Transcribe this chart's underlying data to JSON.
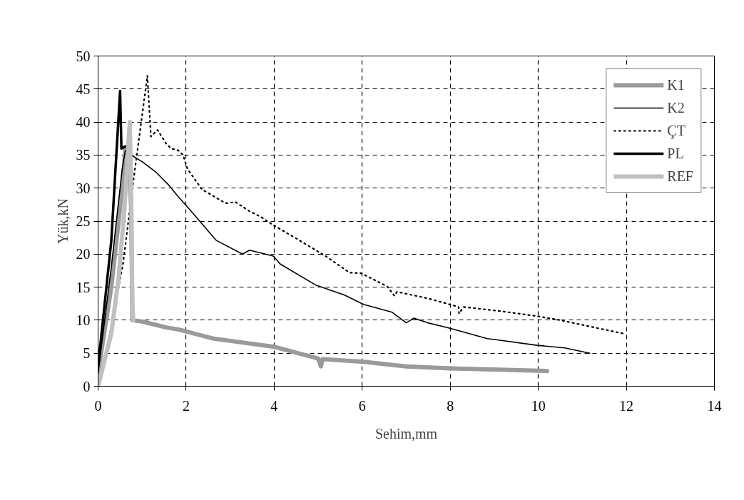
{
  "chart_data": {
    "type": "line",
    "xlabel": "Sehim,mm",
    "ylabel": "Yük,kN",
    "xlim": [
      0,
      14
    ],
    "ylim": [
      0,
      50
    ],
    "xticks": [
      0,
      2,
      4,
      6,
      8,
      10,
      12,
      14
    ],
    "yticks": [
      0,
      5,
      10,
      15,
      20,
      25,
      30,
      35,
      40,
      45,
      50
    ],
    "grid": true,
    "legend": "top right",
    "marker": "none",
    "series": [
      {
        "name": "K1",
        "color": "#9a9a9a",
        "line_style": "solid",
        "x": [
          0,
          0.3,
          0.55,
          0.62,
          0.7,
          0.75,
          0.78,
          1.0,
          1.55,
          1.82,
          2.63,
          3.3,
          3.98,
          4.6,
          5.0,
          5.06,
          5.1,
          6.03,
          7.0,
          8.0,
          9.11,
          10.2
        ],
        "values": [
          2,
          15,
          30,
          36,
          35,
          27,
          10,
          9.8,
          8.9,
          8.6,
          7.2,
          6.6,
          6.0,
          4.9,
          4.2,
          3.0,
          4.1,
          3.7,
          3.0,
          2.7,
          2.5,
          2.3
        ]
      },
      {
        "name": "K2",
        "color": "#000000",
        "line_style": "solid",
        "x": [
          0,
          0.3,
          0.55,
          0.62,
          0.8,
          1.0,
          1.3,
          1.6,
          1.82,
          2.05,
          2.36,
          2.68,
          3.28,
          3.44,
          3.98,
          4.14,
          4.95,
          5.6,
          6.03,
          6.68,
          7.0,
          7.17,
          7.49,
          7.98,
          8.84,
          9.1,
          9.97,
          10.6,
          11.17
        ],
        "values": [
          2,
          18,
          33,
          35.7,
          34.8,
          34,
          32.5,
          30.5,
          28.7,
          27,
          24.6,
          22.1,
          20,
          20.6,
          19.7,
          18.5,
          15.3,
          13.8,
          12.4,
          11.2,
          9.6,
          10.3,
          9.6,
          8.8,
          7.2,
          7.0,
          6.2,
          5.8,
          5.0
        ]
      },
      {
        "name": "ÇT",
        "color": "#000000",
        "line_style": "dotted",
        "x": [
          0,
          0.3,
          0.57,
          0.81,
          1.12,
          1.2,
          1.35,
          1.55,
          1.66,
          1.82,
          1.93,
          2.03,
          2.36,
          2.9,
          3.12,
          3.44,
          3.71,
          3.98,
          4.52,
          5.17,
          5.71,
          5.98,
          6.57,
          6.73,
          6.79,
          7.49,
          7.98,
          8.19,
          8.2,
          8.3,
          9.11,
          9.98,
          10.5,
          11.2,
          11.92
        ],
        "values": [
          0,
          9,
          18.7,
          31.5,
          47,
          37.8,
          38.8,
          36.7,
          36,
          35.7,
          35,
          32.9,
          29.8,
          27.7,
          27.9,
          26.5,
          25.6,
          24.4,
          22.3,
          19.7,
          17.2,
          17.1,
          15.1,
          13.7,
          14.3,
          13.3,
          12.4,
          12.0,
          11.0,
          12.0,
          11.4,
          10.6,
          10.0,
          9.0,
          8.0
        ]
      },
      {
        "name": "PL",
        "color": "#000000",
        "line_style": "solid",
        "x": [
          0,
          0.3,
          0.5,
          0.53,
          0.62
        ],
        "values": [
          3,
          22,
          44.7,
          36,
          36.3
        ]
      },
      {
        "name": "REF",
        "color": "#c0c0c0",
        "line_style": "solid",
        "x": [
          0,
          0.3,
          0.47,
          0.6,
          0.72,
          0.75,
          0.78,
          0.8
        ],
        "values": [
          0,
          8,
          16.6,
          27,
          40,
          30,
          12,
          10
        ]
      }
    ]
  }
}
